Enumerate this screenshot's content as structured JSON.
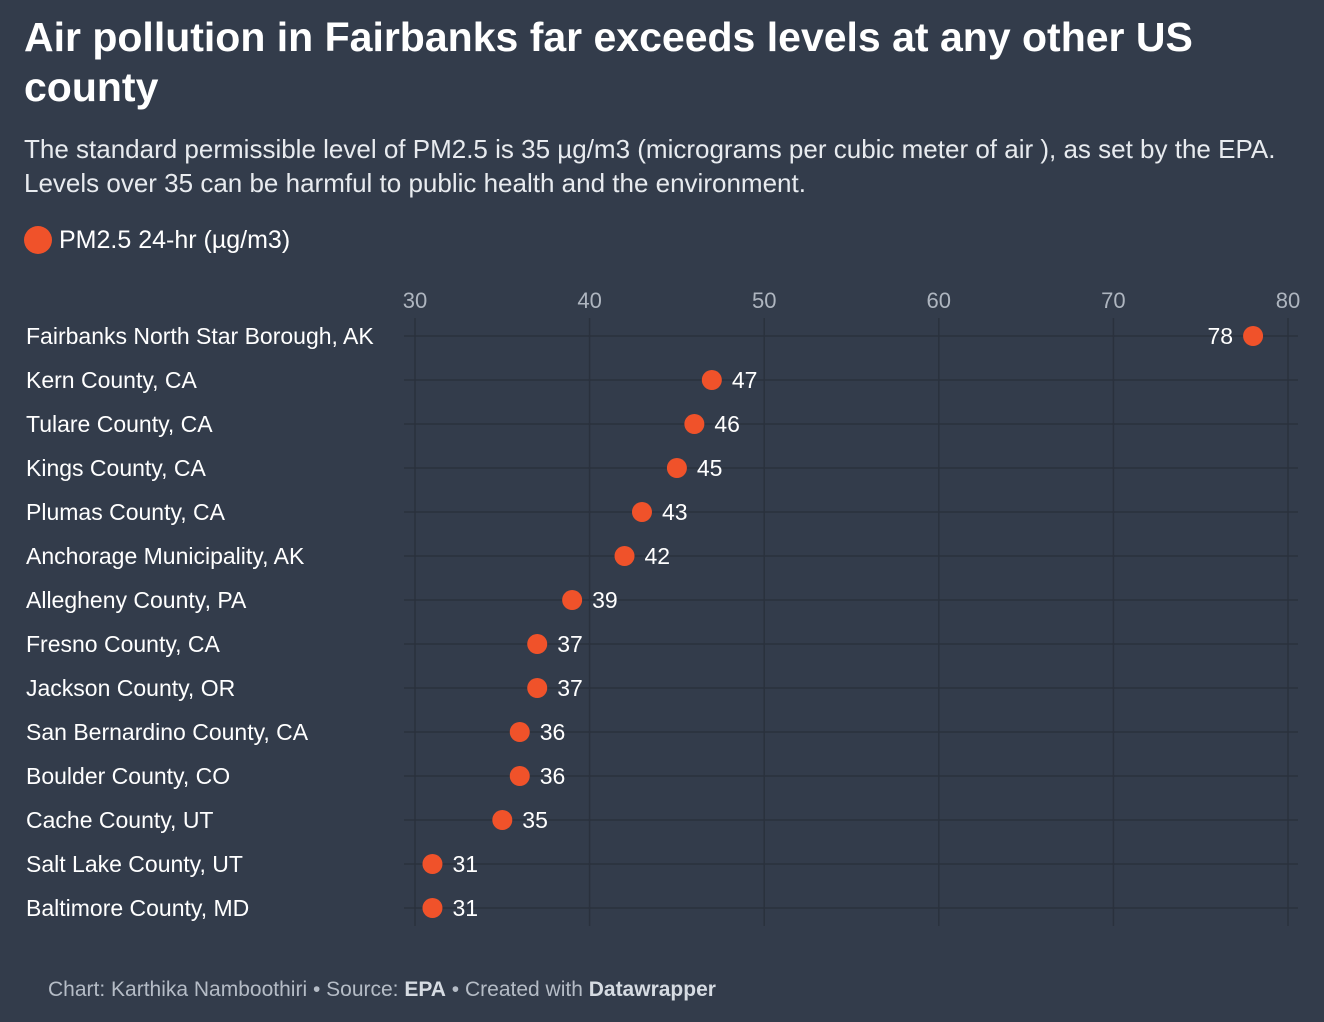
{
  "title": "Air pollution in Fairbanks far exceeds levels at any other US county",
  "subtitle": "The standard permissible level of PM2.5 is 35 µg/m3 (micrograms per cubic meter of air ), as set by the EPA. Levels over 35 can be harmful to public health and the environment.",
  "footer": {
    "chart_prefix": "Chart: Karthika Namboothiri • Source: ",
    "source": "EPA",
    "created_prefix": " • Created with ",
    "tool": "Datawrapper"
  },
  "colors": {
    "background": "#333c4b",
    "dot": "#f0522a",
    "grid": "#2a313d",
    "tick_label": "#aeb5bf"
  },
  "chart_data": {
    "type": "scatter",
    "orientation": "horizontal",
    "legend_position": "top-left",
    "grid": true,
    "xlim": [
      30,
      80
    ],
    "xticks": [
      30,
      40,
      50,
      60,
      70,
      80
    ],
    "categories": [
      "Fairbanks North Star Borough, AK",
      "Kern County, CA",
      "Tulare County, CA",
      "Kings County, CA",
      "Plumas County, CA",
      "Anchorage Municipality, AK",
      "Allegheny County, PA",
      "Fresno County, CA",
      "Jackson County, OR",
      "San Bernardino County, CA",
      "Boulder County, CO",
      "Cache County, UT",
      "Salt Lake County, UT",
      "Baltimore County, MD"
    ],
    "series": [
      {
        "name": "PM2.5 24-hr (µg/m3)",
        "values": [
          78,
          47,
          46,
          45,
          43,
          42,
          39,
          37,
          37,
          36,
          36,
          35,
          31,
          31
        ]
      }
    ]
  }
}
